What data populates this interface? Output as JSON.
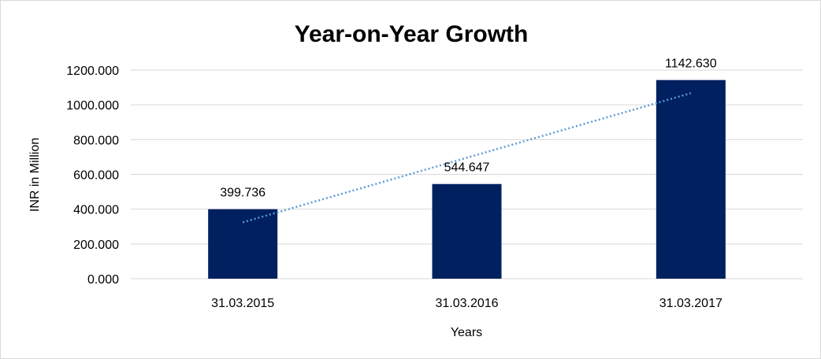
{
  "chart_data": {
    "type": "bar",
    "title": "Year-on-Year Growth",
    "xlabel": "Years",
    "ylabel": "INR in Million",
    "categories": [
      "31.03.2015",
      "31.03.2016",
      "31.03.2017"
    ],
    "values": [
      399.736,
      544.647,
      1142.63
    ],
    "data_labels": [
      "399.736",
      "544.647",
      "1142.630"
    ],
    "y_ticks": [
      "0.000",
      "200.000",
      "400.000",
      "600.000",
      "800.000",
      "1000.000",
      "1200.000"
    ],
    "ylim": [
      0,
      1200
    ],
    "trendline": "linear",
    "grid": true,
    "legend": "none",
    "colors": {
      "bar": "#002060",
      "trendline": "#5b9bd5",
      "grid": "#d9d9d9"
    }
  }
}
